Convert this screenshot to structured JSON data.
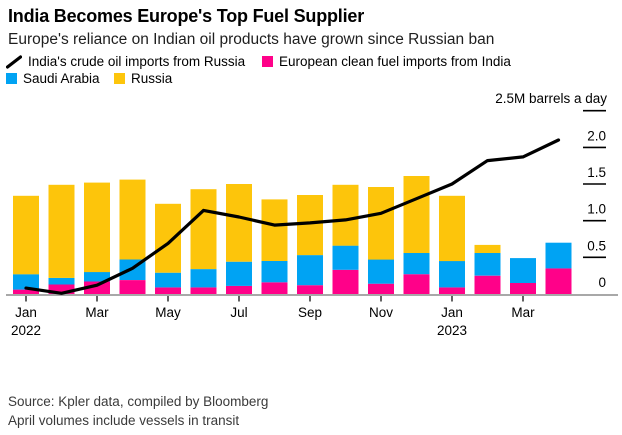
{
  "header": {
    "title": "India Becomes Europe's Top Fuel Supplier",
    "subtitle": "Europe's reliance on Indian oil products have grown since Russian ban"
  },
  "legend": {
    "items": [
      {
        "label": "India's crude oil imports from Russia",
        "icon": "line-sample",
        "color": "#000000"
      },
      {
        "label": "European clean fuel imports from India",
        "icon": "swatch",
        "color": "#ff0189"
      },
      {
        "label": "Saudi Arabia",
        "icon": "swatch",
        "color": "#00a3f3"
      },
      {
        "label": "Russia",
        "icon": "swatch",
        "color": "#fdc50b"
      }
    ]
  },
  "axes": {
    "y_axis_title": "2.5M barrels a day",
    "y_tick_labels": [
      "0",
      "0.5",
      "1.0",
      "1.5",
      "2.0"
    ],
    "x_ticks": [
      {
        "i": 0,
        "label": "Jan",
        "sub": "2022"
      },
      {
        "i": 2,
        "label": "Mar"
      },
      {
        "i": 4,
        "label": "May"
      },
      {
        "i": 6,
        "label": "Jul"
      },
      {
        "i": 8,
        "label": "Sep"
      },
      {
        "i": 10,
        "label": "Nov"
      },
      {
        "i": 12,
        "label": "Jan",
        "sub": "2023"
      },
      {
        "i": 14,
        "label": "Mar"
      }
    ]
  },
  "footer": {
    "source": "Source: Kpler data, compiled by Bloomberg",
    "note": "April volumes include vessels in transit"
  },
  "colors": {
    "bar_pink": "#ff0189",
    "bar_blue": "#00a3f3",
    "bar_yellow": "#fdc50b",
    "line_black": "#000000",
    "axis_line": "#a8a8a8",
    "tick": "#3c3c3c",
    "text": "#000000",
    "muted_text": "#3a3a3a"
  },
  "chart_data": {
    "type": "bar+line",
    "title": "India Becomes Europe's Top Fuel Supplier",
    "subtitle": "Europe's reliance on Indian oil products have grown since Russian ban",
    "unit": "M barrels a day",
    "ylim": [
      0,
      2.5
    ],
    "yticks": [
      0,
      0.5,
      1.0,
      1.5,
      2.0,
      2.5
    ],
    "grid": false,
    "legend_position": "top",
    "x": [
      "Jan 2022",
      "Feb 2022",
      "Mar 2022",
      "Apr 2022",
      "May 2022",
      "Jun 2022",
      "Jul 2022",
      "Aug 2022",
      "Sep 2022",
      "Oct 2022",
      "Nov 2022",
      "Dec 2022",
      "Jan 2023",
      "Feb 2023",
      "Mar 2023",
      "Apr 2023"
    ],
    "series": [
      {
        "name": "European clean fuel imports from India",
        "type": "bar",
        "stack_order": 0,
        "color": "#ff0189",
        "values": [
          0.06,
          0.13,
          0.17,
          0.19,
          0.09,
          0.09,
          0.11,
          0.16,
          0.12,
          0.33,
          0.14,
          0.27,
          0.09,
          0.25,
          0.15,
          0.35
        ]
      },
      {
        "name": "Saudi Arabia",
        "type": "bar",
        "stack_order": 1,
        "color": "#00a3f3",
        "values": [
          0.21,
          0.09,
          0.13,
          0.28,
          0.2,
          0.25,
          0.33,
          0.29,
          0.41,
          0.33,
          0.33,
          0.29,
          0.36,
          0.31,
          0.34,
          0.35
        ]
      },
      {
        "name": "Russia",
        "type": "bar",
        "stack_order": 2,
        "color": "#fdc50b",
        "values": [
          1.07,
          1.27,
          1.22,
          1.09,
          0.94,
          1.09,
          1.06,
          0.84,
          0.82,
          0.83,
          0.99,
          1.05,
          0.89,
          0.11,
          0.0,
          0.0
        ]
      },
      {
        "name": "India's crude oil imports from Russia",
        "type": "line",
        "color": "#000000",
        "values": [
          0.08,
          0.01,
          0.12,
          0.35,
          0.69,
          1.14,
          1.05,
          0.94,
          0.97,
          1.01,
          1.1,
          1.3,
          1.5,
          1.82,
          1.87,
          2.1
        ]
      }
    ]
  }
}
